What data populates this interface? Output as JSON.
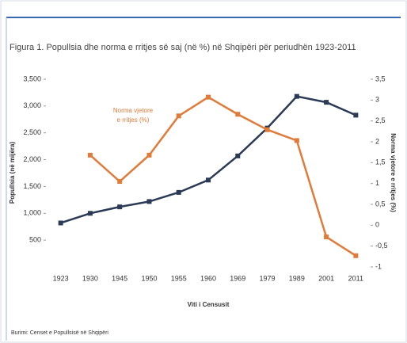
{
  "chart_data": {
    "type": "line",
    "title": "Figura 1. Popullsia dhe norma e rritjes së saj (në %) në Shqipëri për periudhën 1923-2011",
    "categories": [
      "1923",
      "1930",
      "1945",
      "1950",
      "1955",
      "1960",
      "1969",
      "1979",
      "1989",
      "2001",
      "2011"
    ],
    "series": [
      {
        "name": "Popullsia (në mijëra)",
        "color": "#2b3a55",
        "values": [
          820,
          1000,
          1120,
          1220,
          1390,
          1620,
          2070,
          2590,
          3180,
          3070,
          2830
        ]
      },
      {
        "name": "Norma vjetore e rritjes (%)",
        "color": "#e07b39",
        "axis": "y2",
        "values": [
          null,
          1.68,
          1.05,
          1.68,
          2.62,
          3.07,
          2.66,
          2.29,
          2.03,
          -0.28,
          -0.73
        ]
      }
    ],
    "annotation": [
      "Norma vjetore",
      "e rritjes (%)"
    ],
    "ylabel": "Popullsia (në mijëra)",
    "y2label": "Norma vjetore e rritjes (%)",
    "xlabel": "Viti i Censusit",
    "source": "Burimi: Censet e Popullsisë në Shqipëri",
    "ylim": [
      0,
      3500
    ],
    "yticks": [
      500,
      {
        "value": 1000,
        "label": "1,000"
      },
      {
        "value": 1500,
        "label": "1,500"
      },
      {
        "value": 2000,
        "label": "2,000"
      },
      {
        "value": 2500,
        "label": "2,500"
      },
      {
        "value": 3000,
        "label": "3,000"
      },
      {
        "value": 3500,
        "label": "3,500"
      }
    ],
    "y2lim": [
      -1,
      3.5
    ],
    "y2ticks": [
      -1,
      {
        "value": -0.5,
        "label": "-0,5"
      },
      0,
      {
        "value": 0.5,
        "label": "0,5"
      },
      1,
      {
        "value": 1.5,
        "label": "1,5"
      },
      2,
      {
        "value": 2.5,
        "label": "2,5"
      },
      3,
      {
        "value": 3.5,
        "label": "3,5"
      }
    ],
    "grid": false
  }
}
